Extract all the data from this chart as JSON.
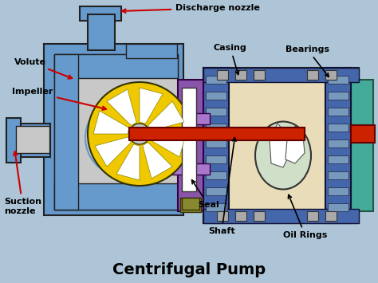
{
  "title": "Centrifugal Pump",
  "title_fontsize": 14,
  "title_fontweight": "bold",
  "fig_width": 4.74,
  "fig_height": 3.55,
  "dpi": 100,
  "labels": {
    "discharge_nozzle": "Discharge nozzle",
    "volute": "Volute",
    "impeller": "Impeller",
    "suction_nozzle": "Suction\nnozzle",
    "casing": "Casing",
    "bearings": "Bearings",
    "seal": "Seal",
    "shaft": "Shaft",
    "oil_rings": "Oil Rings"
  },
  "colors": {
    "bg": "#adc5d6",
    "blue": "#6699cc",
    "blue_dark": "#4466aa",
    "blue_mid": "#7799bb",
    "yellow": "#f0c800",
    "red_shaft": "#cc2200",
    "purple": "#8855aa",
    "purple2": "#aa77cc",
    "gray_light": "#c8c8c8",
    "gray_mid": "#aaaaaa",
    "white": "#ffffff",
    "black": "#111111",
    "olive": "#888833",
    "teal": "#44aa99",
    "olive_dark": "#777700",
    "beige": "#e8ddb8",
    "red_arrow": "#cc0000"
  }
}
